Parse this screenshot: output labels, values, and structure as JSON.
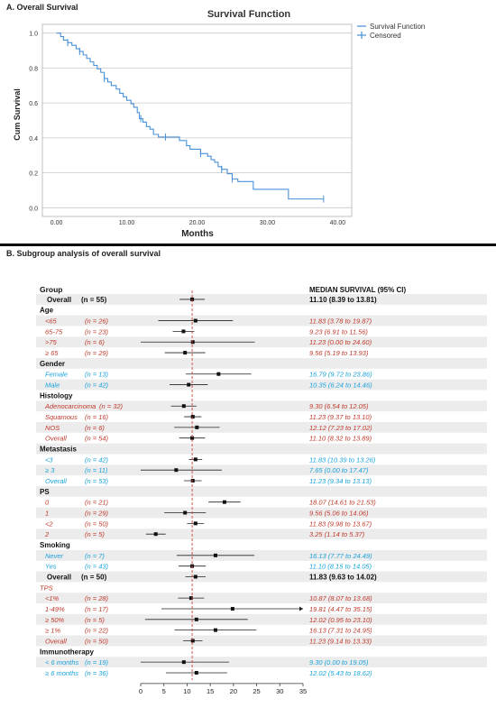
{
  "chart_data": [
    {
      "type": "line",
      "panel_label": "A. Overall Survival",
      "title": "Survival Function",
      "xlabel": "Months",
      "ylabel": "Cum Survival",
      "xlim": [
        -2,
        42
      ],
      "ylim": [
        -0.05,
        1.05
      ],
      "x_ticks": [
        "0.00",
        "10.00",
        "20.00",
        "30.00",
        "40.00"
      ],
      "y_ticks": [
        "0.0",
        "0.2",
        "0.4",
        "0.6",
        "0.8",
        "1.0"
      ],
      "grid": "horizontal",
      "legend_position": "top-right",
      "legend": [
        "Survival Function",
        "Censored"
      ],
      "colors": {
        "line": "#4a90d9",
        "grid": "#c8c8c8"
      },
      "series": [
        {
          "name": "Survival Function",
          "step": [
            [
              0,
              1.0
            ],
            [
              0.6,
              0.98
            ],
            [
              1.0,
              0.96
            ],
            [
              1.6,
              0.945
            ],
            [
              2.2,
              0.93
            ],
            [
              2.8,
              0.91
            ],
            [
              3.3,
              0.895
            ],
            [
              3.8,
              0.875
            ],
            [
              4.3,
              0.855
            ],
            [
              4.8,
              0.835
            ],
            [
              5.3,
              0.815
            ],
            [
              5.8,
              0.795
            ],
            [
              6.3,
              0.775
            ],
            [
              6.8,
              0.74
            ],
            [
              7.3,
              0.72
            ],
            [
              7.8,
              0.7
            ],
            [
              8.5,
              0.68
            ],
            [
              9.0,
              0.655
            ],
            [
              9.5,
              0.635
            ],
            [
              10.0,
              0.615
            ],
            [
              10.6,
              0.595
            ],
            [
              11.0,
              0.575
            ],
            [
              11.5,
              0.545
            ],
            [
              11.8,
              0.51
            ],
            [
              12.3,
              0.49
            ],
            [
              12.8,
              0.465
            ],
            [
              13.3,
              0.45
            ],
            [
              13.8,
              0.42
            ],
            [
              14.5,
              0.405
            ],
            [
              17.5,
              0.385
            ],
            [
              18.5,
              0.355
            ],
            [
              19.0,
              0.335
            ],
            [
              20.5,
              0.31
            ],
            [
              21.5,
              0.295
            ],
            [
              22.0,
              0.275
            ],
            [
              22.5,
              0.26
            ],
            [
              23.0,
              0.235
            ],
            [
              23.5,
              0.22
            ],
            [
              24.3,
              0.195
            ],
            [
              25.0,
              0.165
            ],
            [
              25.8,
              0.15
            ],
            [
              28.0,
              0.105
            ],
            [
              33.0,
              0.05
            ],
            [
              38.0,
              0.05
            ]
          ],
          "censored": [
            [
              1.6,
              0.945
            ],
            [
              3.3,
              0.895
            ],
            [
              6.8,
              0.74
            ],
            [
              12.0,
              0.51
            ],
            [
              15.5,
              0.405
            ],
            [
              20.5,
              0.31
            ],
            [
              23.5,
              0.22
            ],
            [
              25.0,
              0.165
            ],
            [
              38.0,
              0.05
            ]
          ]
        }
      ]
    },
    {
      "type": "forest",
      "panel_label": "B. Subgroup analysis of overall survival",
      "header_group": "Group",
      "header_value": "MEDIAN SURVIVAL (95% CI)",
      "x_ticks": [
        0,
        5,
        10,
        15,
        20,
        25,
        30,
        35
      ],
      "xlim": [
        0,
        35
      ],
      "reference_line": 11.1,
      "colors": {
        "primary": "#111111",
        "category": "#1aa3dc",
        "accent": "#c0392b",
        "shade": "#ececec",
        "reference": "#d04040"
      },
      "rows": [
        {
          "kind": "overall",
          "label": "Overall",
          "n": "(n = 55)",
          "est": 11.1,
          "lo": 8.39,
          "hi": 13.81,
          "text": "11.10 (8.39 to 13.81)",
          "style": "bold"
        },
        {
          "kind": "header",
          "label": "Age"
        },
        {
          "kind": "item",
          "label": "<65",
          "n": "(n = 26)",
          "est": 11.83,
          "lo": 3.78,
          "hi": 19.87,
          "text": "11.83 (3.78 to 19.87)",
          "style": "red"
        },
        {
          "kind": "item",
          "label": "65-75",
          "n": "(n = 23)",
          "est": 9.23,
          "lo": 6.91,
          "hi": 11.56,
          "text": "9.23 (6.91 to 11.56)",
          "style": "red"
        },
        {
          "kind": "item",
          "label": ">75",
          "n": "(n = 6)",
          "est": 11.23,
          "lo": 0.0,
          "hi": 24.6,
          "text": "11.23 (0.00 to 24.60)",
          "style": "red"
        },
        {
          "kind": "item",
          "label": "≥ 65",
          "n": "(n = 29)",
          "est": 9.56,
          "lo": 5.19,
          "hi": 13.93,
          "text": "9.56 (5.19 to 13.93)",
          "style": "red"
        },
        {
          "kind": "header",
          "label": "Gender"
        },
        {
          "kind": "item",
          "label": "Female",
          "n": "(n = 13)",
          "est": 16.79,
          "lo": 9.72,
          "hi": 23.86,
          "text": "16.79 (9.72 to 23.86)",
          "style": "blue"
        },
        {
          "kind": "item",
          "label": "Male",
          "n": "(n = 42)",
          "est": 10.35,
          "lo": 6.24,
          "hi": 14.46,
          "text": "10.35 (6.24 to 14.46)",
          "style": "blue"
        },
        {
          "kind": "header",
          "label": "Histology"
        },
        {
          "kind": "item",
          "label": "Adenocarcinoma",
          "n": "(n = 32)",
          "est": 9.3,
          "lo": 6.54,
          "hi": 12.05,
          "text": "9.30 (6.54 to 12.05)",
          "style": "red"
        },
        {
          "kind": "item",
          "label": "Squamous",
          "n": "(n = 16)",
          "est": 11.23,
          "lo": 9.37,
          "hi": 13.1,
          "text": "11.23 (9.37 to 13.10)",
          "style": "red"
        },
        {
          "kind": "item",
          "label": "NOS",
          "n": "(n = 6)",
          "est": 12.12,
          "lo": 7.23,
          "hi": 17.02,
          "text": "12.12 (7.23 to 17.02)",
          "style": "red"
        },
        {
          "kind": "item",
          "label": "Overall",
          "n": "(n = 54)",
          "est": 11.1,
          "lo": 8.32,
          "hi": 13.89,
          "text": "11.10 (8.32 to 13.89)",
          "style": "red"
        },
        {
          "kind": "header",
          "label": "Metastasis"
        },
        {
          "kind": "item",
          "label": "<3",
          "n": "(n = 42)",
          "est": 11.83,
          "lo": 10.39,
          "hi": 13.26,
          "text": "11.83 (10.39 to 13.26)",
          "style": "blue"
        },
        {
          "kind": "item",
          "label": "≥ 3",
          "n": "(n = 11)",
          "est": 7.65,
          "lo": 0.0,
          "hi": 17.47,
          "text": "7.65 (0.00 to 17.47)",
          "style": "blue"
        },
        {
          "kind": "item",
          "label": "Overall",
          "n": "(n = 53)",
          "est": 11.23,
          "lo": 9.34,
          "hi": 13.13,
          "text": "11.23 (9.34 to 13.13)",
          "style": "blue"
        },
        {
          "kind": "header",
          "label": "PS"
        },
        {
          "kind": "item",
          "label": "0",
          "n": "(n = 21)",
          "est": 18.07,
          "lo": 14.61,
          "hi": 21.53,
          "text": "18.07 (14.61 to 21.53)",
          "style": "red"
        },
        {
          "kind": "item",
          "label": "1",
          "n": "(n = 29)",
          "est": 9.56,
          "lo": 5.06,
          "hi": 14.06,
          "text": "9.56 (5.06 to 14.06)",
          "style": "red"
        },
        {
          "kind": "item",
          "label": "<2",
          "n": "(n = 50)",
          "est": 11.83,
          "lo": 9.98,
          "hi": 13.67,
          "text": "11.83 (9.98 to 13.67)",
          "style": "red"
        },
        {
          "kind": "item",
          "label": "2",
          "n": "(n = 5)",
          "est": 3.25,
          "lo": 1.14,
          "hi": 5.37,
          "text": "3.25 (1.14 to 5.37)",
          "style": "red"
        },
        {
          "kind": "header",
          "label": "Smoking"
        },
        {
          "kind": "item",
          "label": "Never",
          "n": "(n = 7)",
          "est": 16.13,
          "lo": 7.77,
          "hi": 24.49,
          "text": "16.13 (7.77 to 24.49)",
          "style": "blue"
        },
        {
          "kind": "item",
          "label": "Yes",
          "n": "(n = 43)",
          "est": 11.1,
          "lo": 8.15,
          "hi": 14.05,
          "text": "11.10 (8.15 to 14.05)",
          "style": "blue"
        },
        {
          "kind": "overall",
          "label": "Overall",
          "n": "(n = 50)",
          "est": 11.83,
          "lo": 9.63,
          "hi": 14.02,
          "text": "11.83 (9.63 to 14.02)",
          "style": "bold"
        },
        {
          "kind": "subheader",
          "label": "TPS"
        },
        {
          "kind": "item",
          "label": "<1%",
          "n": "(n = 28)",
          "est": 10.87,
          "lo": 8.07,
          "hi": 13.68,
          "text": "10.87 (8.07 to 13.68)",
          "style": "red"
        },
        {
          "kind": "item",
          "label": "1-49%",
          "n": "(n = 17)",
          "est": 19.81,
          "lo": 4.47,
          "hi": 35.15,
          "text": "19.81 (4.47 to 35.15)",
          "style": "red"
        },
        {
          "kind": "item",
          "label": "≥ 50%",
          "n": "(n = 5)",
          "est": 12.02,
          "lo": 0.95,
          "hi": 23.1,
          "text": "12.02 (0.95 to 23.10)",
          "style": "red"
        },
        {
          "kind": "item",
          "label": "≥ 1%",
          "n": "(n = 22)",
          "est": 16.13,
          "lo": 7.31,
          "hi": 24.95,
          "text": "16.13 (7.31 to 24.95)",
          "style": "red"
        },
        {
          "kind": "item",
          "label": "Overall",
          "n": "(n = 50)",
          "est": 11.23,
          "lo": 9.14,
          "hi": 13.33,
          "text": "11.23 (9.14 to 13.33)",
          "style": "red"
        },
        {
          "kind": "header",
          "label": "Immunotherapy"
        },
        {
          "kind": "item",
          "label": "< 6 months",
          "n": "(n = 19)",
          "est": 9.3,
          "lo": 0.0,
          "hi": 19.05,
          "text": "9.30 (0.00 to 19.05)",
          "style": "blue"
        },
        {
          "kind": "item",
          "label": "≥ 6 months",
          "n": "(n = 36)",
          "est": 12.02,
          "lo": 5.43,
          "hi": 18.62,
          "text": "12.02 (5.43 to 18.62)",
          "style": "blue"
        }
      ]
    }
  ]
}
